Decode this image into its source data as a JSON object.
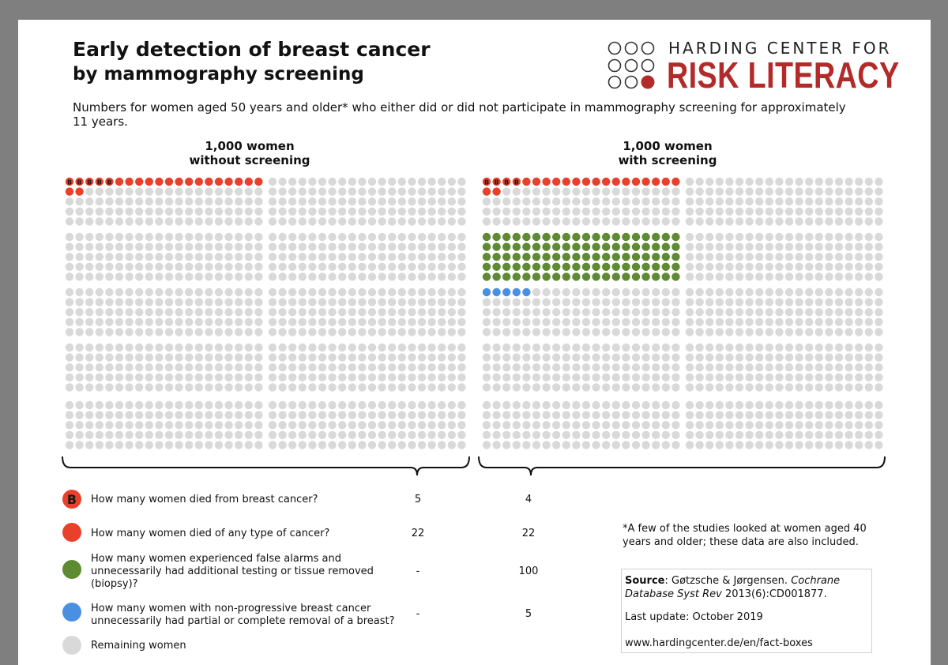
{
  "title": {
    "line1": "Early detection of breast cancer",
    "line2": "by mammography screening"
  },
  "subtitle": "Numbers for women aged 50 years and older* who either did or did not participate in mammography screening for approximately 11 years.",
  "logo": {
    "line1": "HARDING CENTER FOR",
    "line2": "RISK LITERACY"
  },
  "colors": {
    "red": "#e8402b",
    "green": "#5e8a32",
    "blue": "#4a90e2",
    "gray": "#d9d9d9",
    "brand_red": "#b22a2a",
    "death_text": "#1a1a1a"
  },
  "chart_data": {
    "type": "icon-array",
    "total_per_group": 1000,
    "groups": [
      {
        "id": "without",
        "heading_line1": "1,000 women",
        "heading_line2": "without screening",
        "died_breast_cancer": 5,
        "died_any_cancer": 22,
        "false_alarms": null,
        "unnecessary_removal": null
      },
      {
        "id": "with",
        "heading_line1": "1,000 women",
        "heading_line2": "with screening",
        "died_breast_cancer": 4,
        "died_any_cancer": 22,
        "false_alarms": 100,
        "unnecessary_removal": 5
      }
    ],
    "breast_cancer_marker": "B"
  },
  "legend": [
    {
      "key": "breast",
      "icon": "red-dot-b-icon",
      "label": "How many women died from breast cancer?",
      "without": "5",
      "with": "4"
    },
    {
      "key": "any",
      "icon": "red-dot-icon",
      "label": "How many women died of any type of cancer?",
      "without": "22",
      "with": "22"
    },
    {
      "key": "false",
      "icon": "green-dot-icon",
      "label": "How many women experienced false alarms and unnecessarily had additional testing or tissue removed (biopsy)?",
      "without": "-",
      "with": "100"
    },
    {
      "key": "removal",
      "icon": "blue-dot-icon",
      "label": "How many women with non-progressive breast cancer unnecessarily had partial or complete removal of a breast?",
      "without": "-",
      "with": "5"
    },
    {
      "key": "remaining",
      "icon": "gray-dot-icon",
      "label": "Remaining women",
      "without": "",
      "with": ""
    }
  ],
  "footnote": "*A few of the studies looked at women aged 40 years and older; these data are also included.",
  "source": {
    "label": "Source",
    "authors": ": Gøtzsche & Jørgensen. ",
    "journal": "Cochrane Database Syst Rev",
    "ref": " 2013(6):CD001877.",
    "update": "Last update: October 2019",
    "url": "www.hardingcenter.de/en/fact-boxes"
  }
}
